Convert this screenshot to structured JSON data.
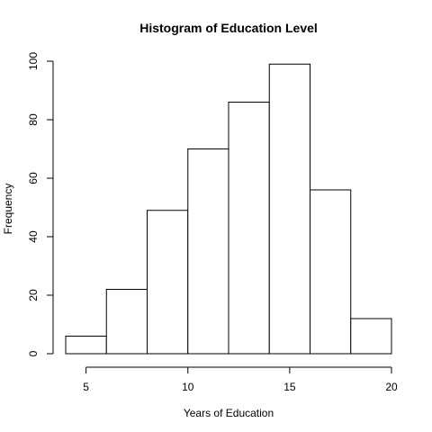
{
  "chart_data": {
    "type": "bar",
    "subtype": "histogram",
    "title": "Histogram of Education Level",
    "xlabel": "Years of Education",
    "ylabel": "Frequency",
    "bins": [
      {
        "start": 4,
        "end": 6,
        "count": 6
      },
      {
        "start": 6,
        "end": 8,
        "count": 22
      },
      {
        "start": 8,
        "end": 10,
        "count": 49
      },
      {
        "start": 10,
        "end": 12,
        "count": 70
      },
      {
        "start": 12,
        "end": 14,
        "count": 86
      },
      {
        "start": 14,
        "end": 16,
        "count": 99
      },
      {
        "start": 16,
        "end": 18,
        "count": 56
      },
      {
        "start": 18,
        "end": 20,
        "count": 12
      }
    ],
    "xlim": [
      4,
      20
    ],
    "ylim": [
      0,
      100
    ],
    "xticks": [
      5,
      10,
      15,
      20
    ],
    "yticks": [
      0,
      20,
      40,
      60,
      80,
      100
    ],
    "grid": false,
    "bar_fill": "#ffffff",
    "bar_stroke": "#000000"
  }
}
